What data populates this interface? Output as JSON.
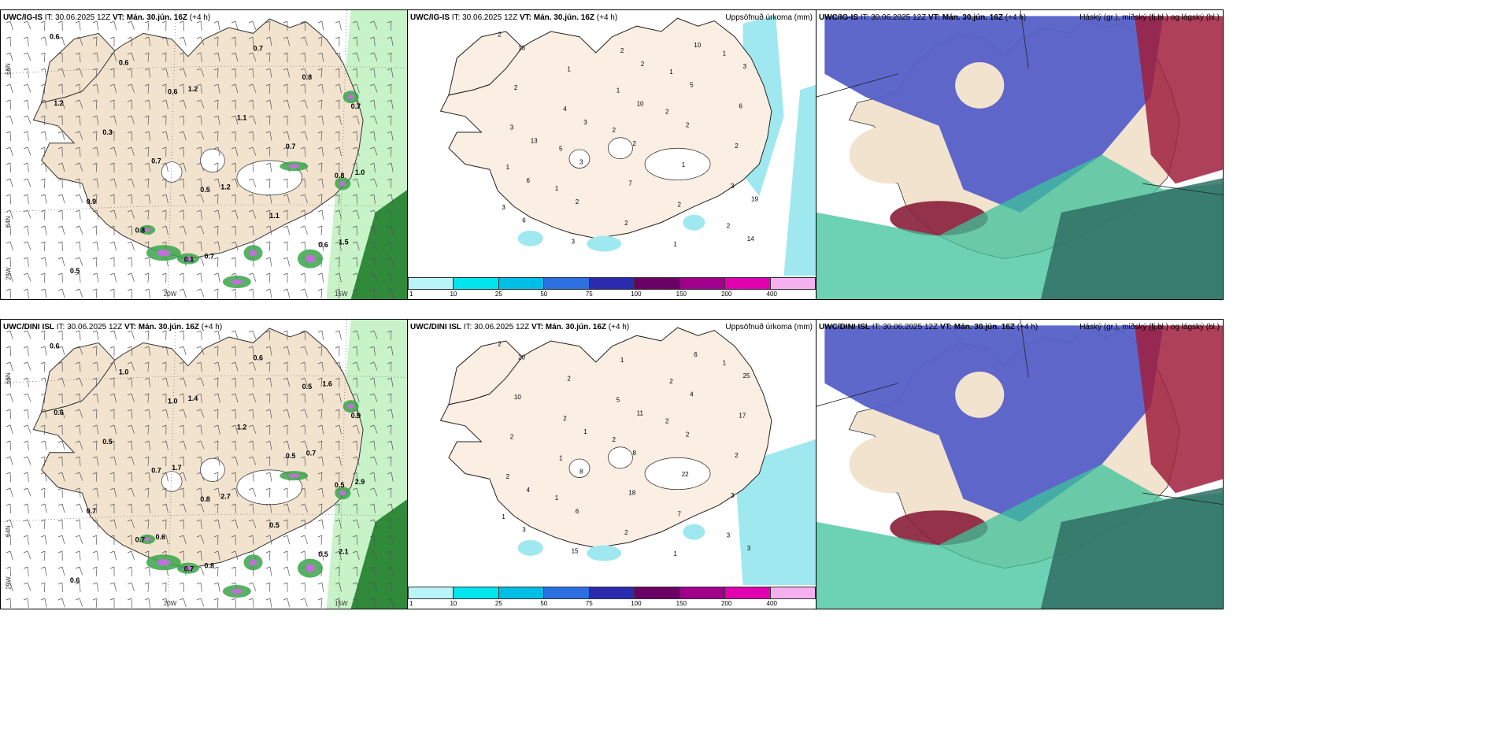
{
  "rows": [
    {
      "model": "UWC/IG-IS",
      "it_label": "IT:",
      "it_value": "30.06.2025 12Z",
      "vt_label": "VT:",
      "vt_value": "Mán. 30.jún. 16Z",
      "lead": "(+4 h)",
      "precip_title": "Uppsöfnuð úrkoma (mm)",
      "cloud_title": "Háský (gr.), miðský (fj.bl.) og lágský (bl.)",
      "lat_labels": [
        "66N",
        "64N",
        "25W"
      ],
      "lon_labels": [
        "20W",
        "15W"
      ],
      "wind_precip_values": [
        "0.6",
        "0.5",
        "0.7",
        "0.1",
        "0.8",
        "0.6",
        "0.6",
        "0.7",
        "0.8",
        "0.8",
        "0.7",
        "0.6",
        "1.1",
        "0.3",
        "0.7",
        "0.9",
        "1.1",
        "0.5",
        "1.2",
        "1.2",
        "0.7",
        "1.0",
        "1.2",
        "1.5"
      ],
      "accum_values": [
        "2",
        "2",
        "1",
        "1",
        "2",
        "3",
        "1",
        "5",
        "2",
        "1",
        "1",
        "1",
        "4",
        "3",
        "2",
        "3",
        "2",
        "1",
        "2",
        "2",
        "2",
        "1",
        "3",
        "6",
        "7",
        "16",
        "2",
        "2",
        "3",
        "2",
        "6",
        "5",
        "3",
        "14",
        "10",
        "6",
        "10",
        "3",
        "19",
        "2",
        "13"
      ],
      "accent": "#9fe8ef"
    },
    {
      "model": "UWC/DINI ISL",
      "it_label": "IT:",
      "it_value": "30.06.2025 12Z",
      "vt_label": "VT:",
      "vt_value": "Mán. 30.jún. 16Z",
      "lead": "(+4 h)",
      "precip_title": "Uppsöfnuð úrkoma (mm)",
      "cloud_title": "Háský (gr.), miðský (fj.bl.) og lágský (bl.)",
      "lat_labels": [
        "66N",
        "64N",
        "25W"
      ],
      "lon_labels": [
        "20W",
        "15W"
      ],
      "wind_precip_values": [
        "0.6",
        "0.8",
        "0.9",
        "0.7",
        "0.5",
        "1.0",
        "0.5",
        "0.7",
        "0.5",
        "0.7",
        "0.5",
        "1.0",
        "0.5",
        "0.5",
        "0.6",
        "0.7",
        "1.2",
        "0.6",
        "2.7",
        "0.6",
        "0.8",
        "2.9",
        "1.4",
        "2.1",
        "1.7",
        "1.6",
        "0.6",
        "0.7"
      ],
      "accum_values": [
        "2",
        "2",
        "1",
        "1",
        "2",
        "1",
        "2",
        "1",
        "3",
        "5",
        "2",
        "1",
        "2",
        "3",
        "1",
        "2",
        "7",
        "2",
        "2",
        "2",
        "10",
        "22",
        "15",
        "17",
        "18",
        "20",
        "2",
        "6",
        "25",
        "8",
        "3",
        "4",
        "8",
        "3",
        "11",
        "4",
        "6",
        "1"
      ],
      "accent": "#9fe8ef"
    }
  ],
  "colorbar": {
    "labels": [
      "1",
      "10",
      "25",
      "50",
      "75",
      "100",
      "150",
      "200",
      "400"
    ],
    "colors": [
      "#b8f4f8",
      "#00e5ee",
      "#00bfe6",
      "#2b6fe0",
      "#2b2bb0",
      "#6b0066",
      "#a0008c",
      "#e000b0",
      "#f5b0f0"
    ]
  }
}
